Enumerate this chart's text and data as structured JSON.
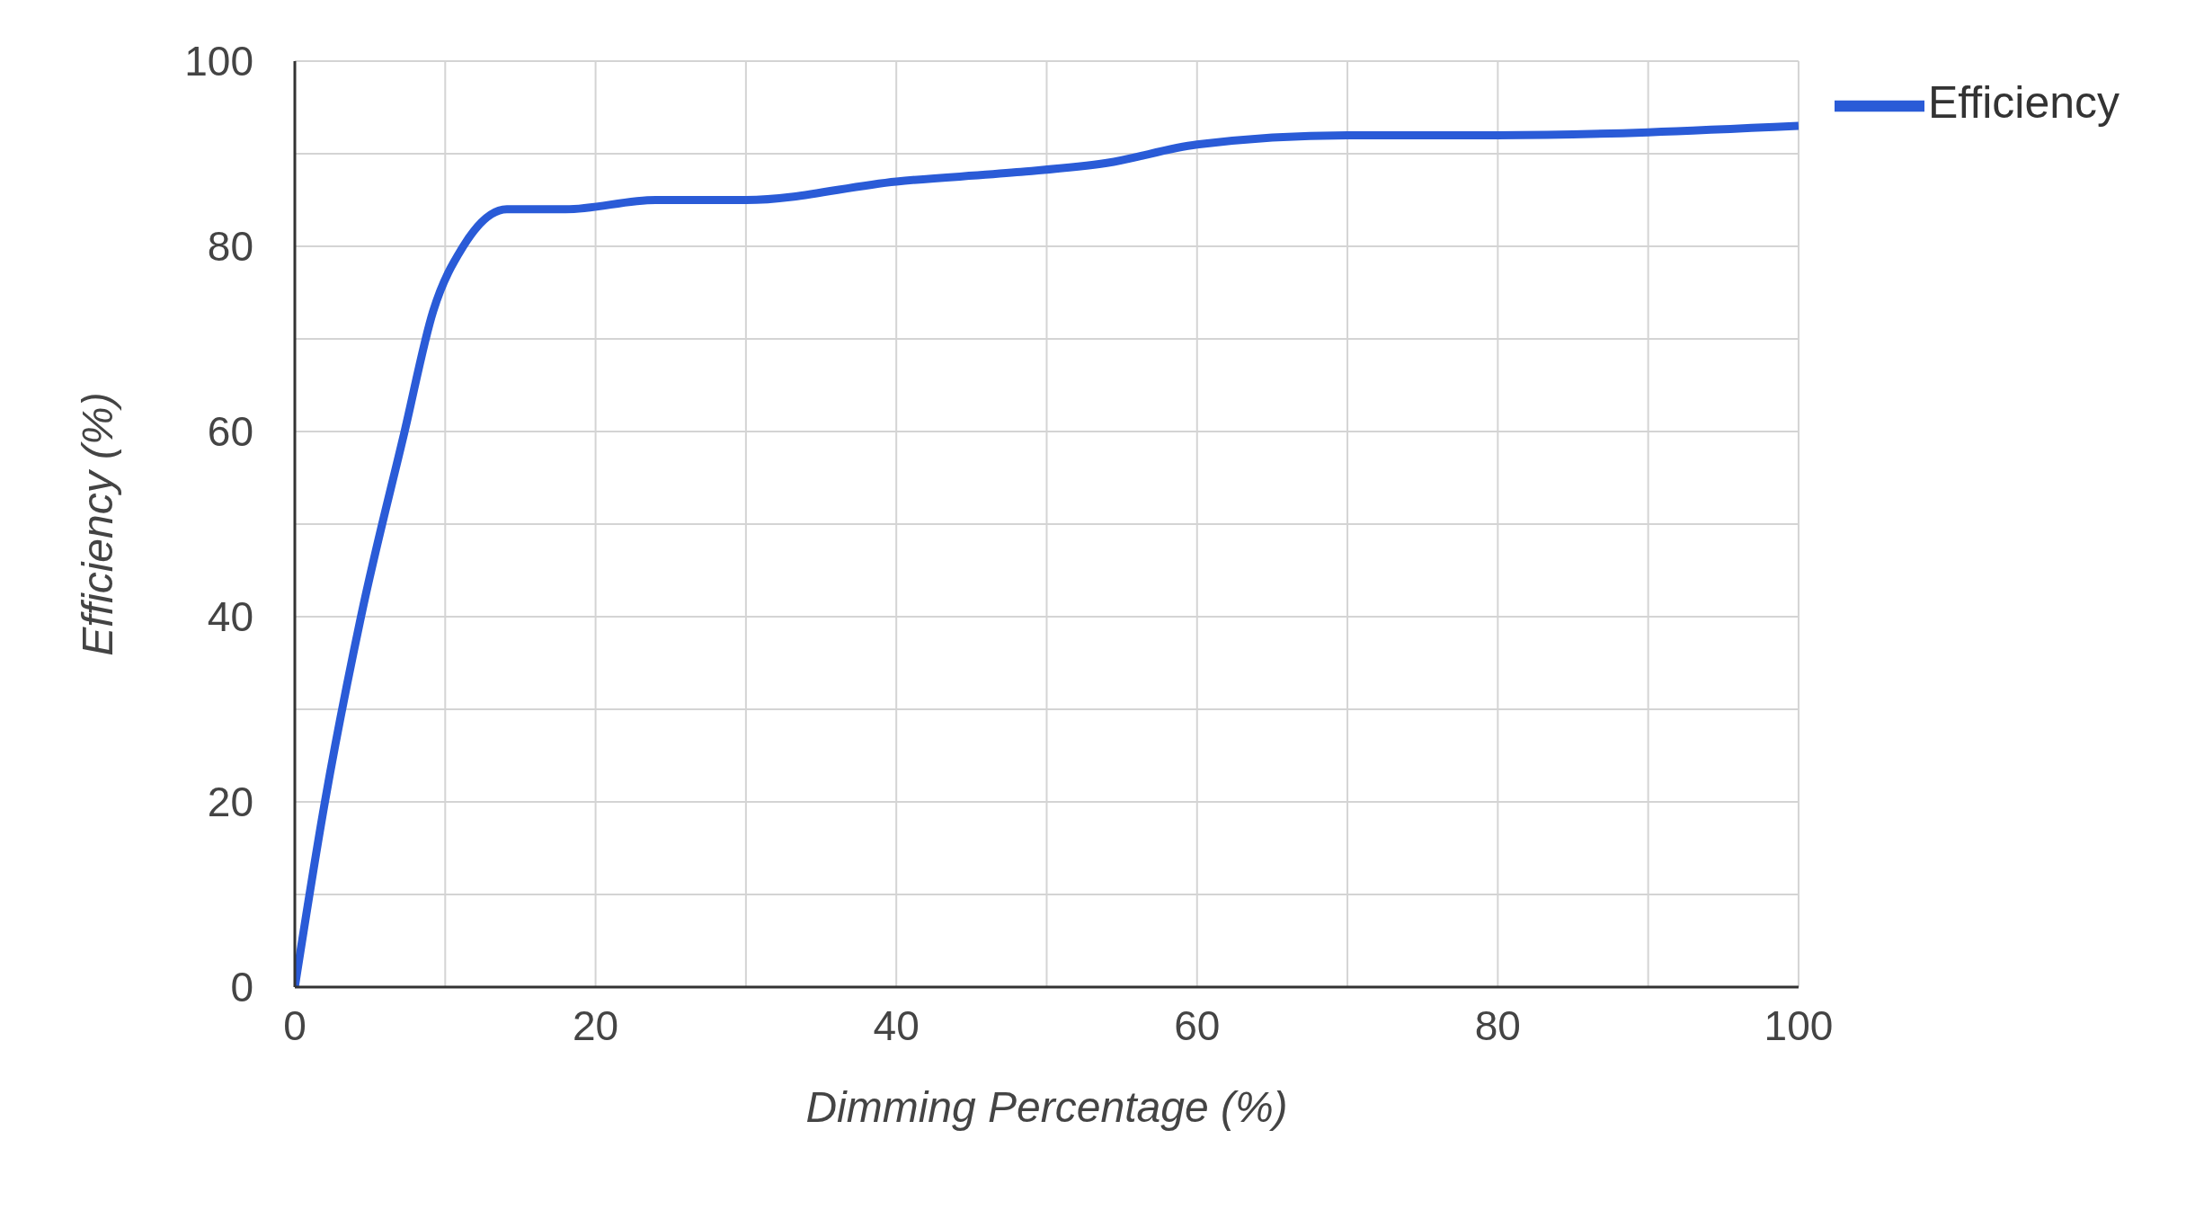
{
  "chart_data": {
    "type": "line",
    "xlabel": "Dimming Percentage (%)",
    "ylabel": "Efficiency (%)",
    "x": [
      0,
      2,
      4.4,
      7.3,
      9.2,
      11.2,
      14.1,
      18,
      24,
      30,
      40,
      48,
      54,
      60,
      70,
      80,
      100
    ],
    "series": [
      {
        "name": "Efficiency",
        "color": "#2a5bd7",
        "values": [
          0,
          20,
          40,
          60,
          73,
          80,
          84,
          84,
          85,
          85,
          87,
          88,
          89,
          91,
          92,
          92,
          93
        ]
      }
    ],
    "xlim": [
      0,
      100
    ],
    "ylim": [
      0,
      100
    ],
    "xticks": [
      0,
      {
        "value": 10,
        "label": null
      },
      20,
      {
        "value": 30,
        "label": null
      },
      40,
      {
        "value": 50,
        "label": null
      },
      60,
      {
        "value": 70,
        "label": null
      },
      80,
      {
        "value": 90,
        "label": null
      },
      100
    ],
    "yticks": [
      0,
      {
        "value": 10,
        "label": null
      },
      20,
      {
        "value": 30,
        "label": null
      },
      40,
      {
        "value": 50,
        "label": null
      },
      60,
      {
        "value": 70,
        "label": null
      },
      80,
      {
        "value": 90,
        "label": null
      },
      100
    ],
    "grid": true,
    "legend": "top right",
    "marker": "none",
    "line_style": "solid"
  }
}
